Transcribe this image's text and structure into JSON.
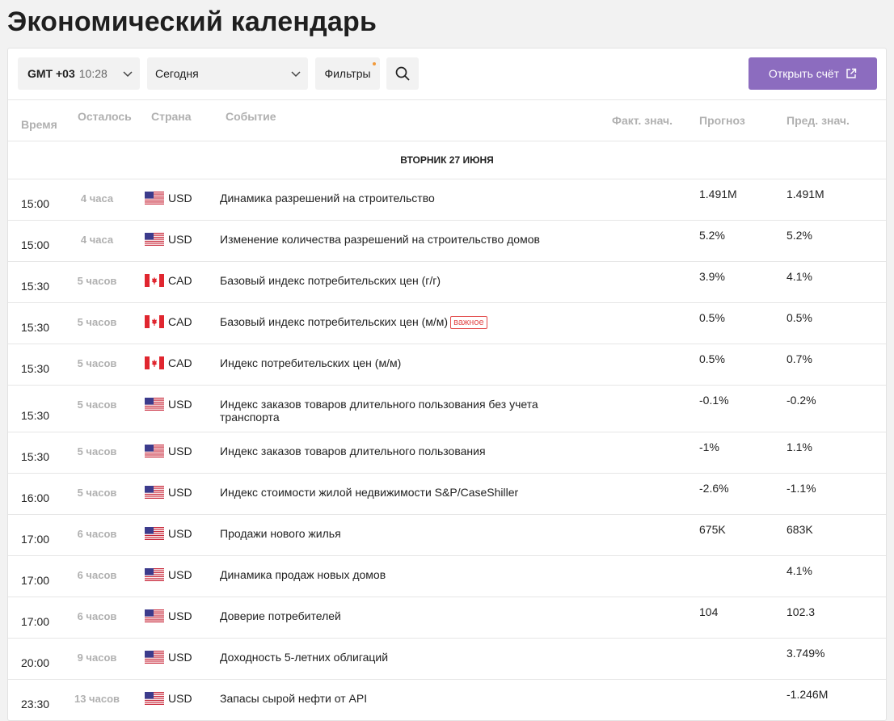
{
  "page": {
    "title": "Экономический календарь"
  },
  "toolbar": {
    "timezone_label": "GMT +03",
    "timezone_time": "10:28",
    "day_value": "Сегодня",
    "filters_label": "Фильтры",
    "open_account_label": "Открыть счёт"
  },
  "columns": {
    "time": "Время",
    "left": "Осталось",
    "country": "Страна",
    "event": "Событие",
    "actual": "Факт. знач.",
    "forecast": "Прогноз",
    "previous": "Пред. знач."
  },
  "day_header": "ВТОРНИК 27 ИЮНЯ",
  "badge_important": "важное",
  "events": [
    {
      "time": "15:00",
      "left": "4 часа",
      "flag": "us-flag-icon",
      "currency": "USD",
      "event": "Динамика разрешений на строительство",
      "important": false,
      "forecast": "1.491M",
      "previous": "1.491M"
    },
    {
      "time": "15:00",
      "left": "4 часа",
      "flag": "us-flag-icon",
      "currency": "USD",
      "event": "Изменение количества разрешений на строительство домов",
      "important": false,
      "forecast": "5.2%",
      "previous": "5.2%"
    },
    {
      "time": "15:30",
      "left": "5 часов",
      "flag": "ca-flag-icon",
      "currency": "CAD",
      "event": "Базовый индекс потребительских цен (г/г)",
      "important": false,
      "forecast": "3.9%",
      "previous": "4.1%"
    },
    {
      "time": "15:30",
      "left": "5 часов",
      "flag": "ca-flag-icon",
      "currency": "CAD",
      "event": "Базовый индекс потребительских цен (м/м)",
      "important": true,
      "forecast": "0.5%",
      "previous": "0.5%"
    },
    {
      "time": "15:30",
      "left": "5 часов",
      "flag": "ca-flag-icon",
      "currency": "CAD",
      "event": "Индекс потребительских цен (м/м)",
      "important": false,
      "forecast": "0.5%",
      "previous": "0.7%"
    },
    {
      "time": "15:30",
      "left": "5 часов",
      "flag": "us-flag-icon",
      "currency": "USD",
      "event": "Индекс заказов товаров длительного пользования без учета транспорта",
      "important": false,
      "forecast": "-0.1%",
      "previous": "-0.2%"
    },
    {
      "time": "15:30",
      "left": "5 часов",
      "flag": "us-flag-icon",
      "currency": "USD",
      "event": "Индекс заказов товаров длительного пользования",
      "important": false,
      "forecast": "-1%",
      "previous": "1.1%"
    },
    {
      "time": "16:00",
      "left": "5 часов",
      "flag": "us-flag-icon",
      "currency": "USD",
      "event": "Индекс стоимости жилой недвижимости S&P/CaseShiller",
      "important": false,
      "forecast": "-2.6%",
      "previous": "-1.1%"
    },
    {
      "time": "17:00",
      "left": "6 часов",
      "flag": "us-flag-icon",
      "currency": "USD",
      "event": "Продажи нового жилья",
      "important": false,
      "forecast": "675K",
      "previous": "683K"
    },
    {
      "time": "17:00",
      "left": "6 часов",
      "flag": "us-flag-icon",
      "currency": "USD",
      "event": "Динамика продаж новых домов",
      "important": false,
      "forecast": "",
      "previous": "4.1%"
    },
    {
      "time": "17:00",
      "left": "6 часов",
      "flag": "us-flag-icon",
      "currency": "USD",
      "event": "Доверие потребителей",
      "important": false,
      "forecast": "104",
      "previous": "102.3"
    },
    {
      "time": "20:00",
      "left": "9 часов",
      "flag": "us-flag-icon",
      "currency": "USD",
      "event": "Доходность 5-летних облигаций",
      "important": false,
      "forecast": "",
      "previous": "3.749%"
    },
    {
      "time": "23:30",
      "left": "13 часов",
      "flag": "us-flag-icon",
      "currency": "USD",
      "event": "Запасы сырой нефти от API",
      "important": false,
      "forecast": "",
      "previous": "-1.246M"
    }
  ]
}
